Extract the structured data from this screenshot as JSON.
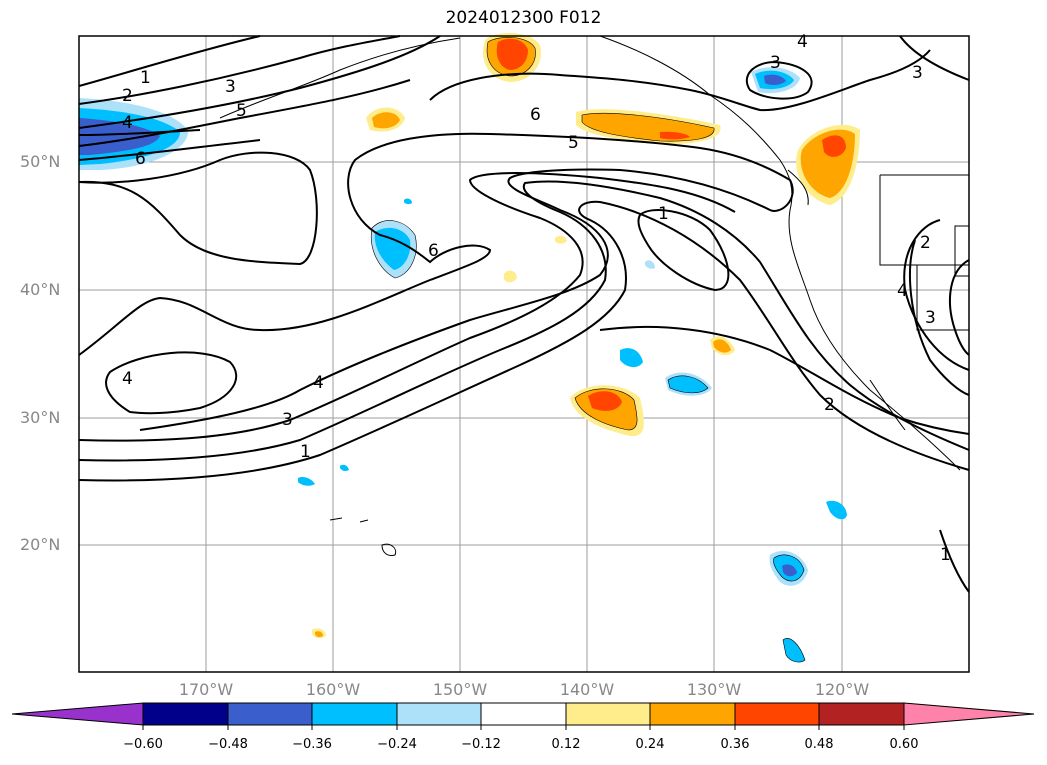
{
  "title": "2024012300 F012",
  "map": {
    "lat_labels": [
      "50°N",
      "40°N",
      "30°N",
      "20°N"
    ],
    "lon_labels": [
      "170°W",
      "160°W",
      "150°W",
      "140°W",
      "130°W",
      "120°W"
    ],
    "contour_labels": [
      "1",
      "2",
      "3",
      "4",
      "5",
      "6",
      "6",
      "5",
      "1",
      "6",
      "4",
      "3",
      "1",
      "2",
      "4",
      "3",
      "3",
      "4",
      "3",
      "1",
      "4",
      "2"
    ]
  },
  "colorbar": {
    "tick_labels": [
      "−0.60",
      "−0.48",
      "−0.36",
      "−0.24",
      "−0.12",
      "0.12",
      "0.24",
      "0.36",
      "0.48",
      "0.60"
    ],
    "colors": [
      "#9932CC",
      "#00008B",
      "#3A5FCD",
      "#00BFFF",
      "#ADE1FA",
      "#FFFFFF",
      "#FFEC8B",
      "#FFA500",
      "#FF4500",
      "#B22222",
      "#FF82AB"
    ]
  }
}
